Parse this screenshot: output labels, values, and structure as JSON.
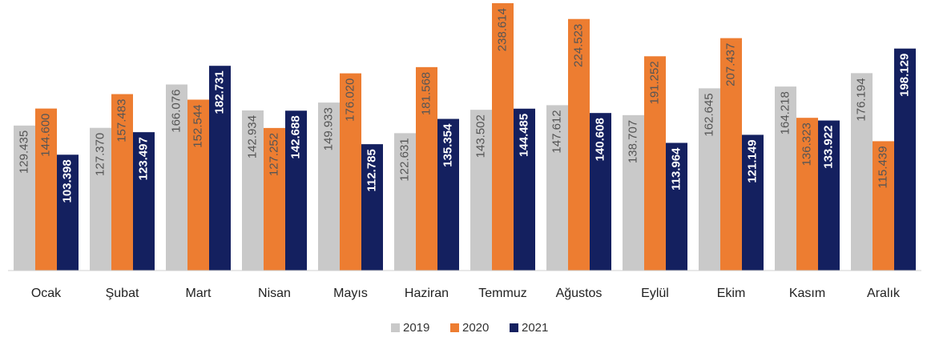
{
  "chart_data": {
    "type": "bar",
    "categories": [
      "Ocak",
      "Şubat",
      "Mart",
      "Nisan",
      "Mayıs",
      "Haziran",
      "Temmuz",
      "Ağustos",
      "Eylül",
      "Ekim",
      "Kasım",
      "Aralık"
    ],
    "series": [
      {
        "name": "2019",
        "color": "#c9c9c9",
        "values": [
          129435,
          127370,
          166076,
          142934,
          149933,
          122631,
          143502,
          147612,
          138707,
          162645,
          164218,
          176194
        ],
        "value_labels": [
          "129.435",
          "127.370",
          "166.076",
          "142.934",
          "149.933",
          "122.631",
          "143.502",
          "147.612",
          "138.707",
          "162.645",
          "164.218",
          "176.194"
        ]
      },
      {
        "name": "2020",
        "color": "#ed7d31",
        "values": [
          144600,
          157483,
          152544,
          127252,
          176020,
          181568,
          238614,
          224523,
          191252,
          207437,
          136323,
          115439
        ],
        "value_labels": [
          "144.600",
          "157.483",
          "152.544",
          "127.252",
          "176.020",
          "181.568",
          "238.614",
          "224.523",
          "191.252",
          "207.437",
          "136.323",
          "115.439"
        ]
      },
      {
        "name": "2021",
        "color": "#14205f",
        "values": [
          103398,
          123497,
          182731,
          142688,
          112785,
          135354,
          144485,
          140608,
          113964,
          121149,
          133922,
          198129
        ],
        "value_labels": [
          "103.398",
          "123.497",
          "182.731",
          "142.688",
          "112.785",
          "135.354",
          "144.485",
          "140.608",
          "113.964",
          "121.149",
          "133.922",
          "198.129"
        ]
      }
    ]
  }
}
